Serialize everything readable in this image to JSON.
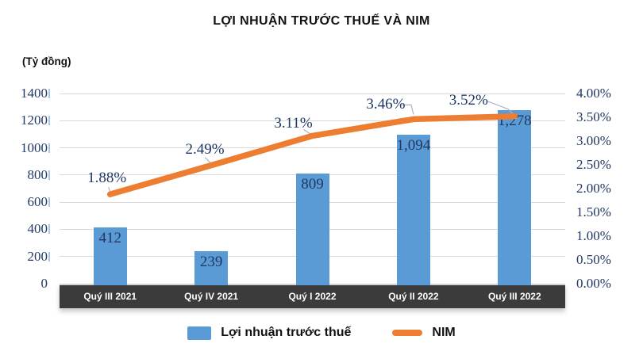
{
  "chart_data": {
    "type": "bar",
    "title": "LỢI NHUẬN TRƯỚC THUẾ VÀ NIM",
    "categories": [
      "Quý III 2021",
      "Quý IV 2021",
      "Quý I 2022",
      "Quý II 2022",
      "Quý III 2022"
    ],
    "series": [
      {
        "name": "Lợi nhuận trước thuế",
        "type": "bar",
        "axis": "left",
        "values": [
          412,
          239,
          809,
          1094,
          1278
        ],
        "labels": [
          "412",
          "239",
          "809",
          "1,094",
          "1,278"
        ],
        "color": "#5B9BD5"
      },
      {
        "name": "NIM",
        "type": "line",
        "axis": "right",
        "values": [
          1.88,
          2.49,
          3.11,
          3.46,
          3.52
        ],
        "labels": [
          "1.88%",
          "2.49%",
          "3.11%",
          "3.46%",
          "3.52%"
        ],
        "color": "#ED7D31"
      }
    ],
    "left_axis": {
      "title": "(Tỷ đồng)",
      "min": 0,
      "max": 1400,
      "step": 200,
      "tick_labels": [
        "0",
        "200",
        "400",
        "600",
        "800",
        "1000",
        "1200",
        "1400"
      ]
    },
    "right_axis": {
      "min": 0,
      "max": 4,
      "step": 0.5,
      "tick_labels": [
        "0.00%",
        "0.50%",
        "1.00%",
        "1.50%",
        "2.00%",
        "2.50%",
        "3.00%",
        "3.50%",
        "4.00%"
      ]
    },
    "grid": true,
    "legend_position": "bottom",
    "colors": {
      "bar": "#5B9BD5",
      "line": "#ED7D31",
      "data_label": "#1F3864",
      "gridline": "#D9D9D9",
      "category_band": "#3B3B3B",
      "category_text": "#FFFFFF"
    }
  }
}
